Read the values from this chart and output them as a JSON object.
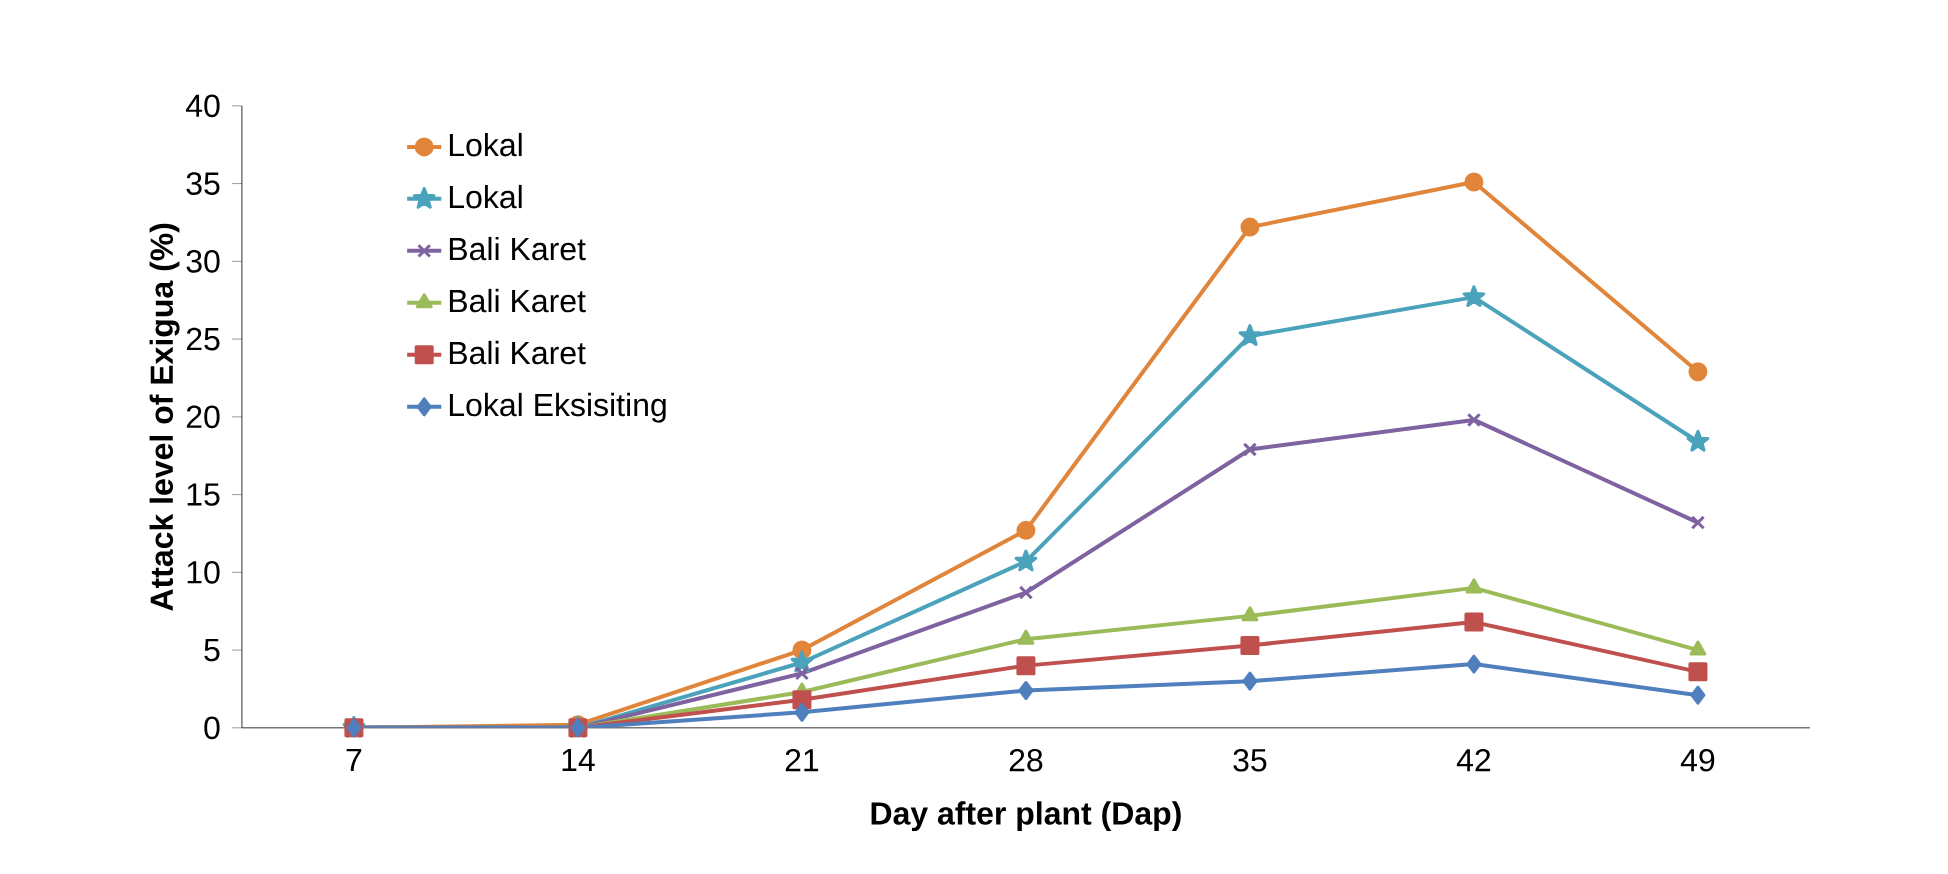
{
  "chart_data": {
    "type": "line",
    "xlabel": "Day after plant (Dap)",
    "ylabel": "Attack level of Exigua (%)",
    "categories": [
      "7",
      "14",
      "21",
      "28",
      "35",
      "42",
      "49"
    ],
    "series": [
      {
        "name": "Lokal",
        "color": "#e0853a",
        "marker": "circle",
        "values": [
          0,
          0.2,
          5.0,
          12.7,
          32.2,
          35.1,
          22.9
        ]
      },
      {
        "name": "Lokal",
        "color": "#4aa2bb",
        "marker": "star",
        "values": [
          0,
          0,
          4.2,
          10.7,
          25.2,
          27.7,
          18.4
        ]
      },
      {
        "name": "Bali Karet",
        "color": "#7f62a0",
        "marker": "cross",
        "values": [
          0,
          0,
          3.5,
          8.7,
          17.9,
          19.8,
          13.2
        ]
      },
      {
        "name": "Bali Karet",
        "color": "#9bbb59",
        "marker": "triangle",
        "values": [
          0,
          0,
          2.3,
          5.7,
          7.2,
          9.0,
          5.0
        ]
      },
      {
        "name": "Bali Karet",
        "color": "#c0504d",
        "marker": "square",
        "values": [
          0,
          0,
          1.8,
          4.0,
          5.3,
          6.8,
          3.6
        ]
      },
      {
        "name": "Lokal Eksisiting",
        "color": "#4f7fbd",
        "marker": "diamond",
        "values": [
          0,
          0,
          1.0,
          2.4,
          3.0,
          4.1,
          2.1
        ]
      }
    ],
    "ylim": [
      0,
      40
    ],
    "yticks": [
      0,
      5,
      10,
      15,
      20,
      25,
      30,
      35,
      40
    ],
    "grid": false,
    "legend": "top left",
    "line_style": "solid"
  }
}
